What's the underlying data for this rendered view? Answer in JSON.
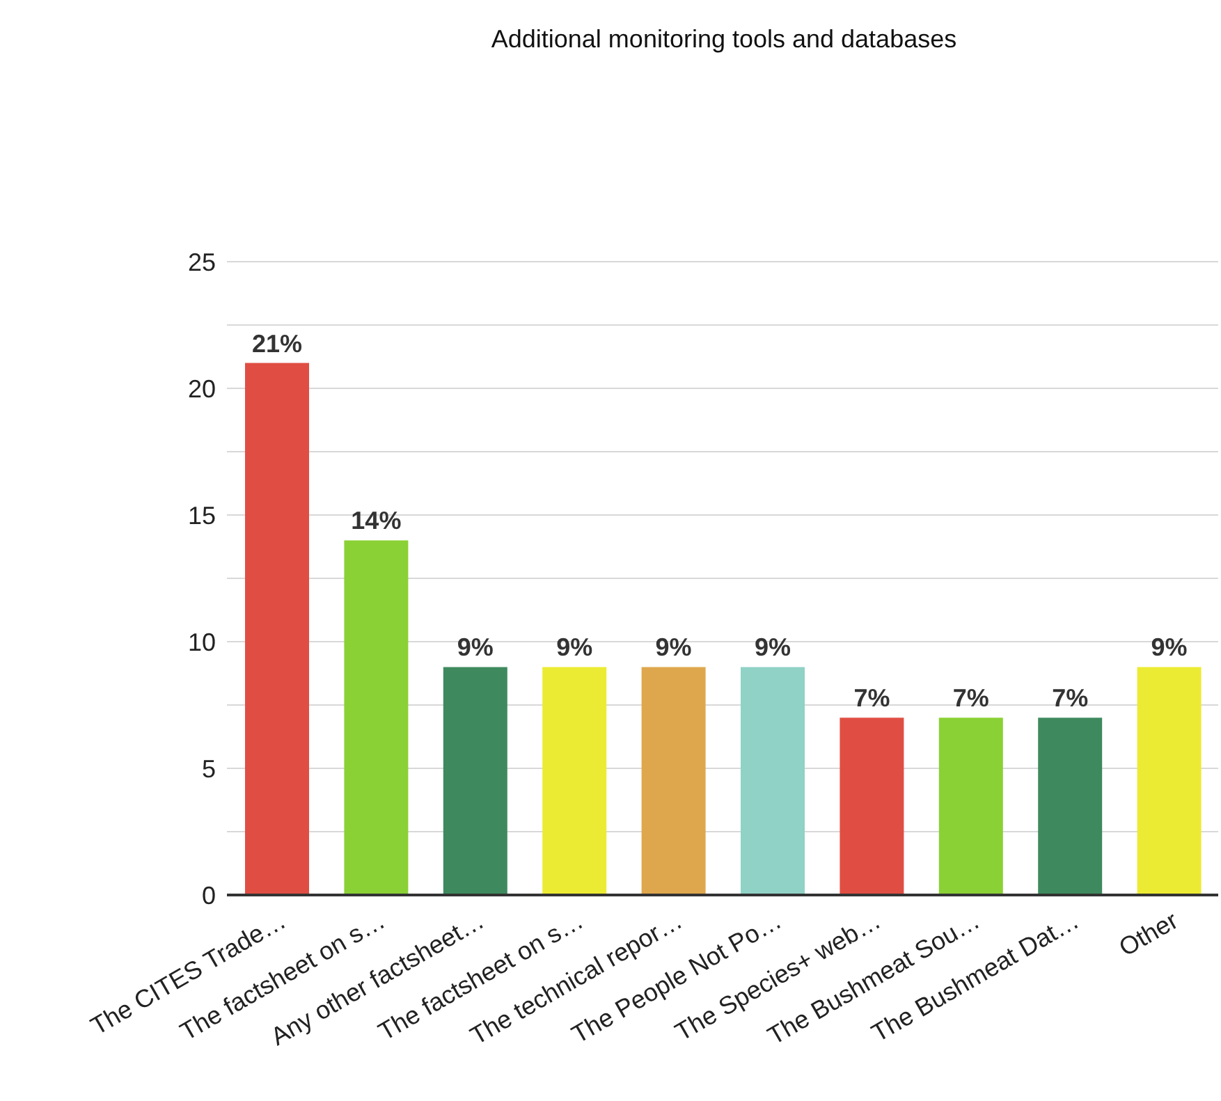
{
  "chart_data": {
    "type": "bar",
    "title": "Additional monitoring tools and databases",
    "categories": [
      "The CITES Trade…",
      "The factsheet on s…",
      "Any other factsheet…",
      "The factsheet on s…",
      "The technical repor…",
      "The People Not Po…",
      "The Species+ web…",
      "The Bushmeat Sou…",
      "The Bushmeat Dat…",
      "Other"
    ],
    "values": [
      21,
      14,
      9,
      9,
      9,
      9,
      7,
      7,
      7,
      9
    ],
    "colors": [
      "#e04e43",
      "#8ad135",
      "#3e8a5e",
      "#eceb33",
      "#dfa74d",
      "#90d2c5",
      "#e04e43",
      "#8ad135",
      "#3e8a5e",
      "#eceb33"
    ],
    "value_labels": [
      "21%",
      "14%",
      "9%",
      "9%",
      "9%",
      "9%",
      "7%",
      "7%",
      "7%",
      "9%"
    ],
    "ylim": [
      0,
      25
    ],
    "yticks": [
      0,
      {
        "value": 2.5,
        "label": null
      },
      5,
      {
        "value": 7.5,
        "label": null
      },
      10,
      {
        "value": 12.5,
        "label": null
      },
      15,
      {
        "value": 17.5,
        "label": null
      },
      20,
      {
        "value": 22.5,
        "label": null
      },
      25
    ],
    "grid": "y"
  }
}
